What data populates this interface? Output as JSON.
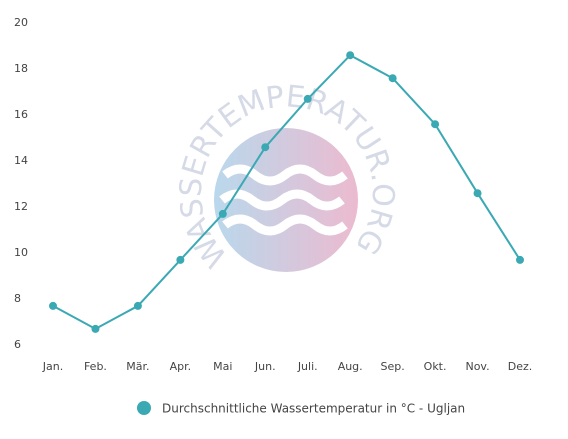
{
  "chart_data": {
    "type": "line",
    "watermark": "WASSERTEMPERATUR.ORG",
    "categories": [
      "Jan.",
      "Feb.",
      "Mär.",
      "Apr.",
      "Mai",
      "Jun.",
      "Juli.",
      "Aug.",
      "Sep.",
      "Okt.",
      "Nov.",
      "Dez."
    ],
    "series": [
      {
        "name": "Durchschnittliche Wassertemperatur in °C - Ugljan",
        "color": "#3aa9b3",
        "values": [
          7.7,
          6.7,
          7.7,
          9.7,
          11.7,
          14.6,
          16.7,
          18.6,
          17.6,
          15.6,
          12.6,
          9.7
        ]
      }
    ],
    "ylim": [
      6,
      20
    ],
    "yticks": [
      6,
      8,
      10,
      12,
      14,
      16,
      18,
      20
    ],
    "grid": false,
    "legend": "bottom"
  }
}
